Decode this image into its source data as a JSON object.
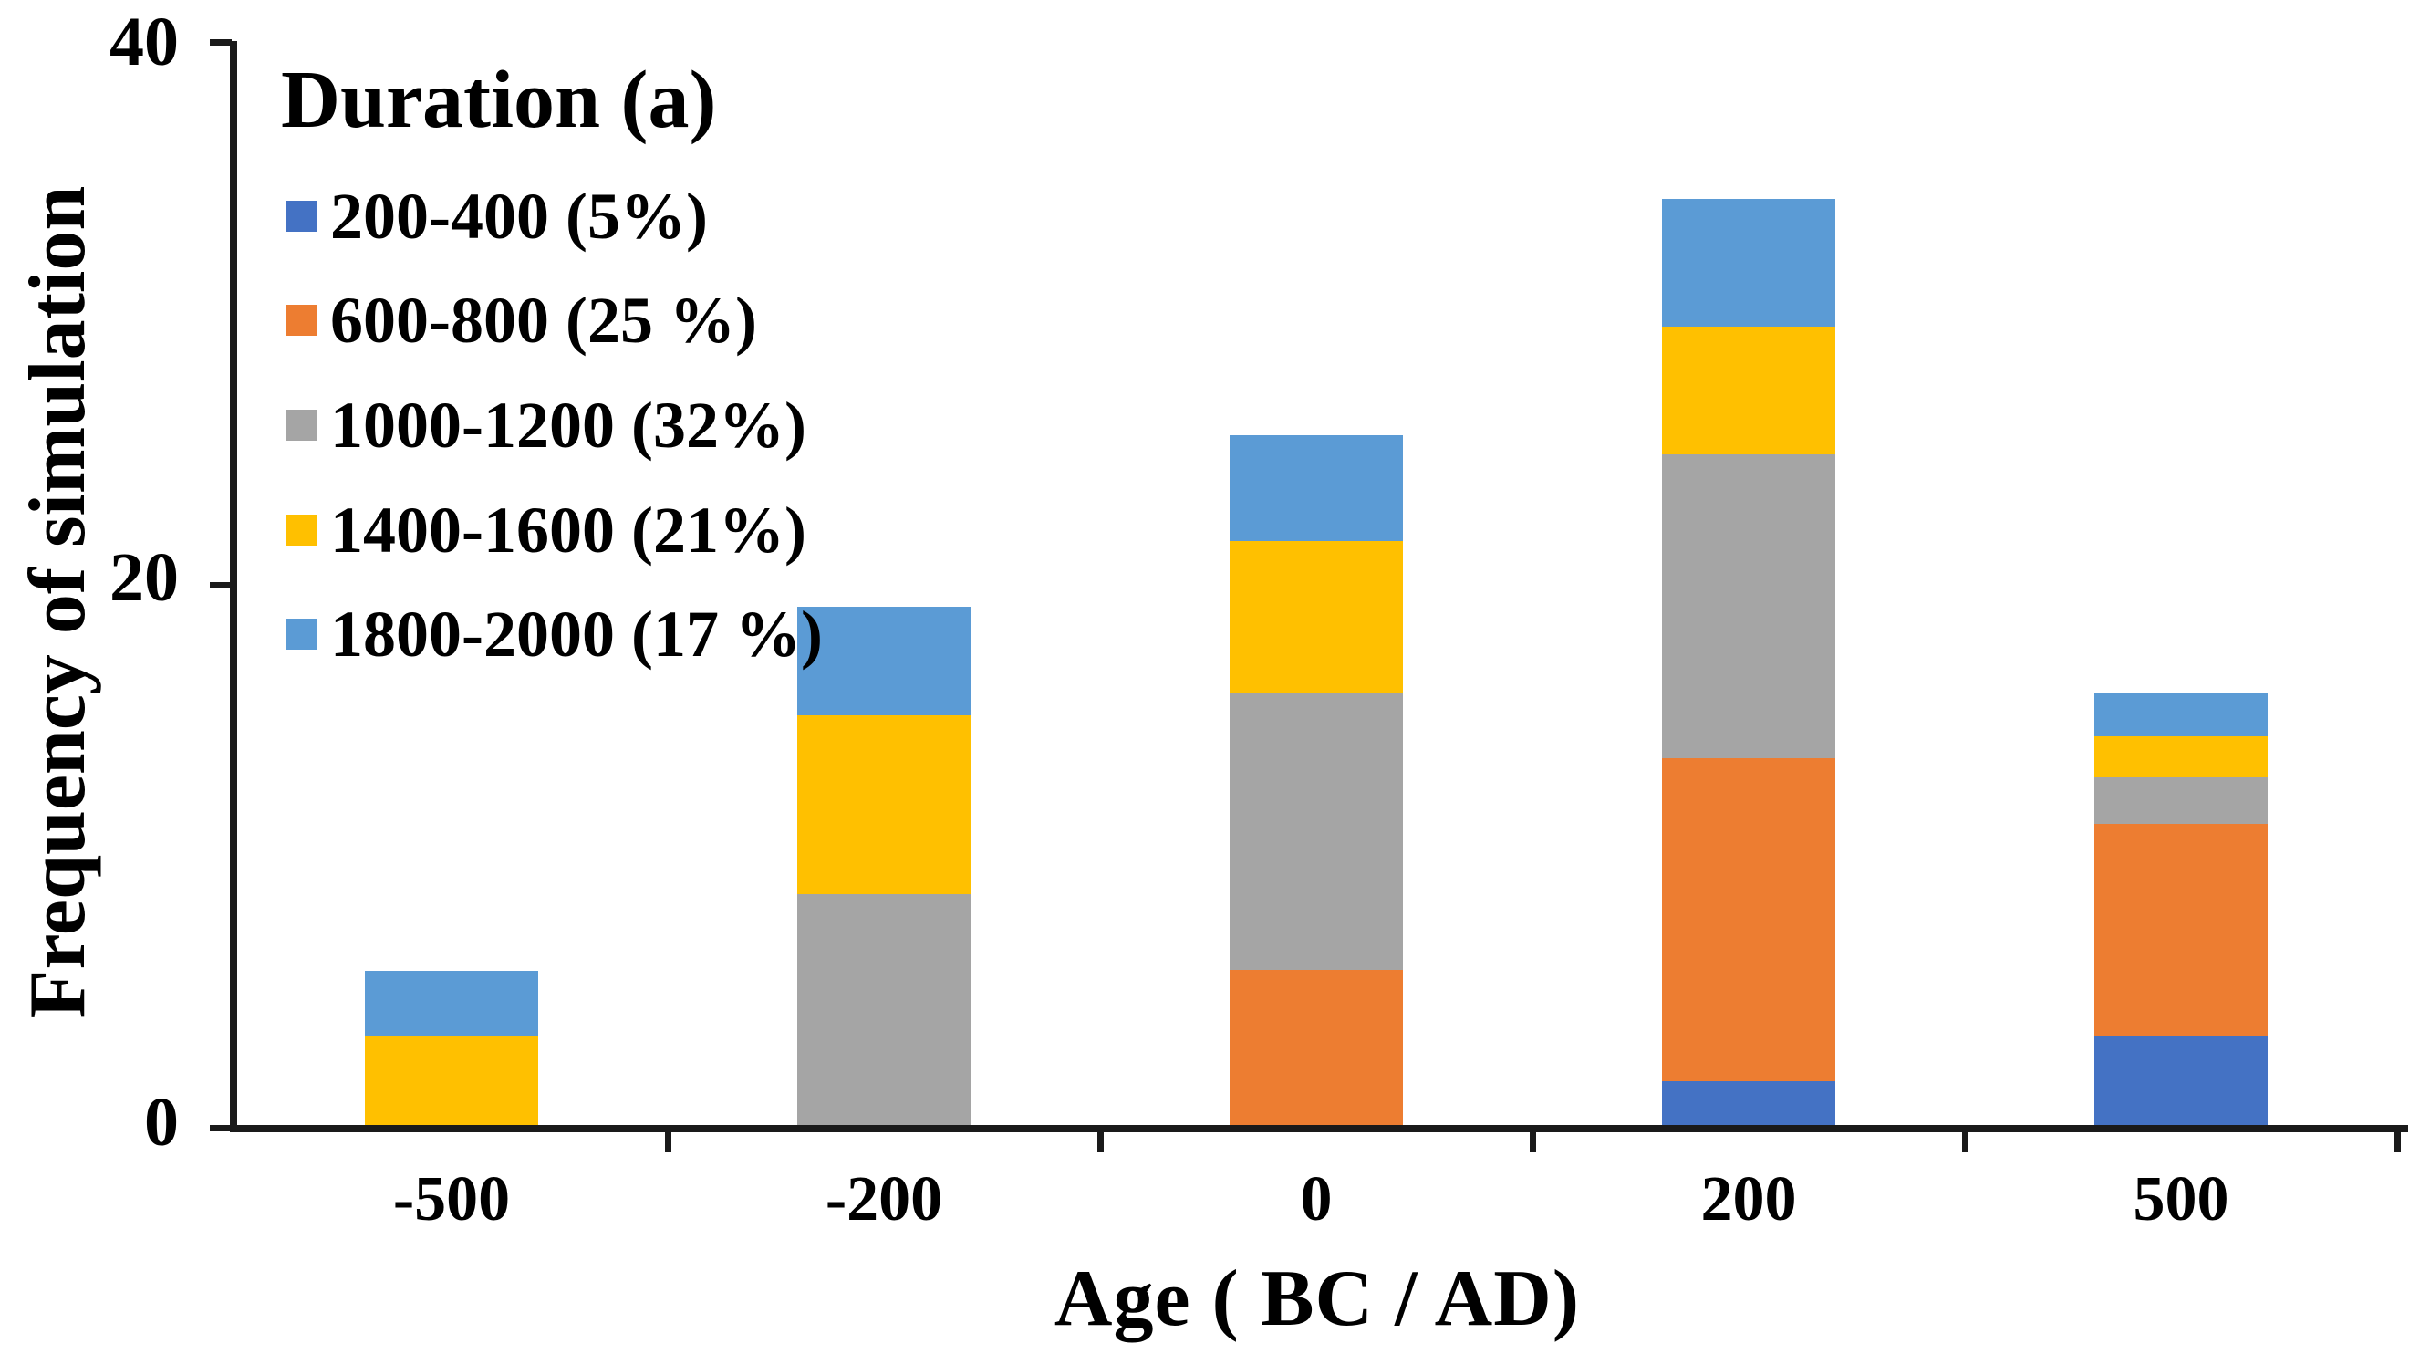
{
  "figure": {
    "background": "#ffffff",
    "text_color": "#000000",
    "axis_color": "#1a1a1a"
  },
  "chart_data": {
    "type": "bar",
    "stacked": true,
    "title": "",
    "xlabel": "Age ( BC / AD)",
    "ylabel": "Frequency of simulation",
    "categories": [
      "-500",
      "-200",
      "0",
      "200",
      "500"
    ],
    "y_ticks": [
      "0",
      "20",
      "40"
    ],
    "ylim": [
      0,
      40
    ],
    "grid": false,
    "legend_title": "Duration (a)",
    "legend_position": "upper-left-inside",
    "series": [
      {
        "name": "200-400 (5%)",
        "color": "#4472C4",
        "values": [
          0,
          0,
          0,
          1.6,
          3.3
        ]
      },
      {
        "name": "600-800 (25 %)",
        "color": "#ED7D31",
        "values": [
          0,
          0,
          5.7,
          11.9,
          7.8
        ]
      },
      {
        "name": "1000-1200 (32%)",
        "color": "#A5A5A5",
        "values": [
          0,
          8.5,
          10.2,
          11.2,
          1.7
        ]
      },
      {
        "name": "1400-1600 (21%)",
        "color": "#FFC000",
        "values": [
          3.3,
          6.6,
          5.6,
          4.7,
          1.5
        ]
      },
      {
        "name": "1800-2000 (17 %)",
        "color": "#5B9BD5",
        "values": [
          2.4,
          4.0,
          3.9,
          4.7,
          1.6
        ]
      }
    ],
    "bar_totals": [
      5.7,
      19.1,
      25.4,
      34.1,
      15.9
    ]
  }
}
